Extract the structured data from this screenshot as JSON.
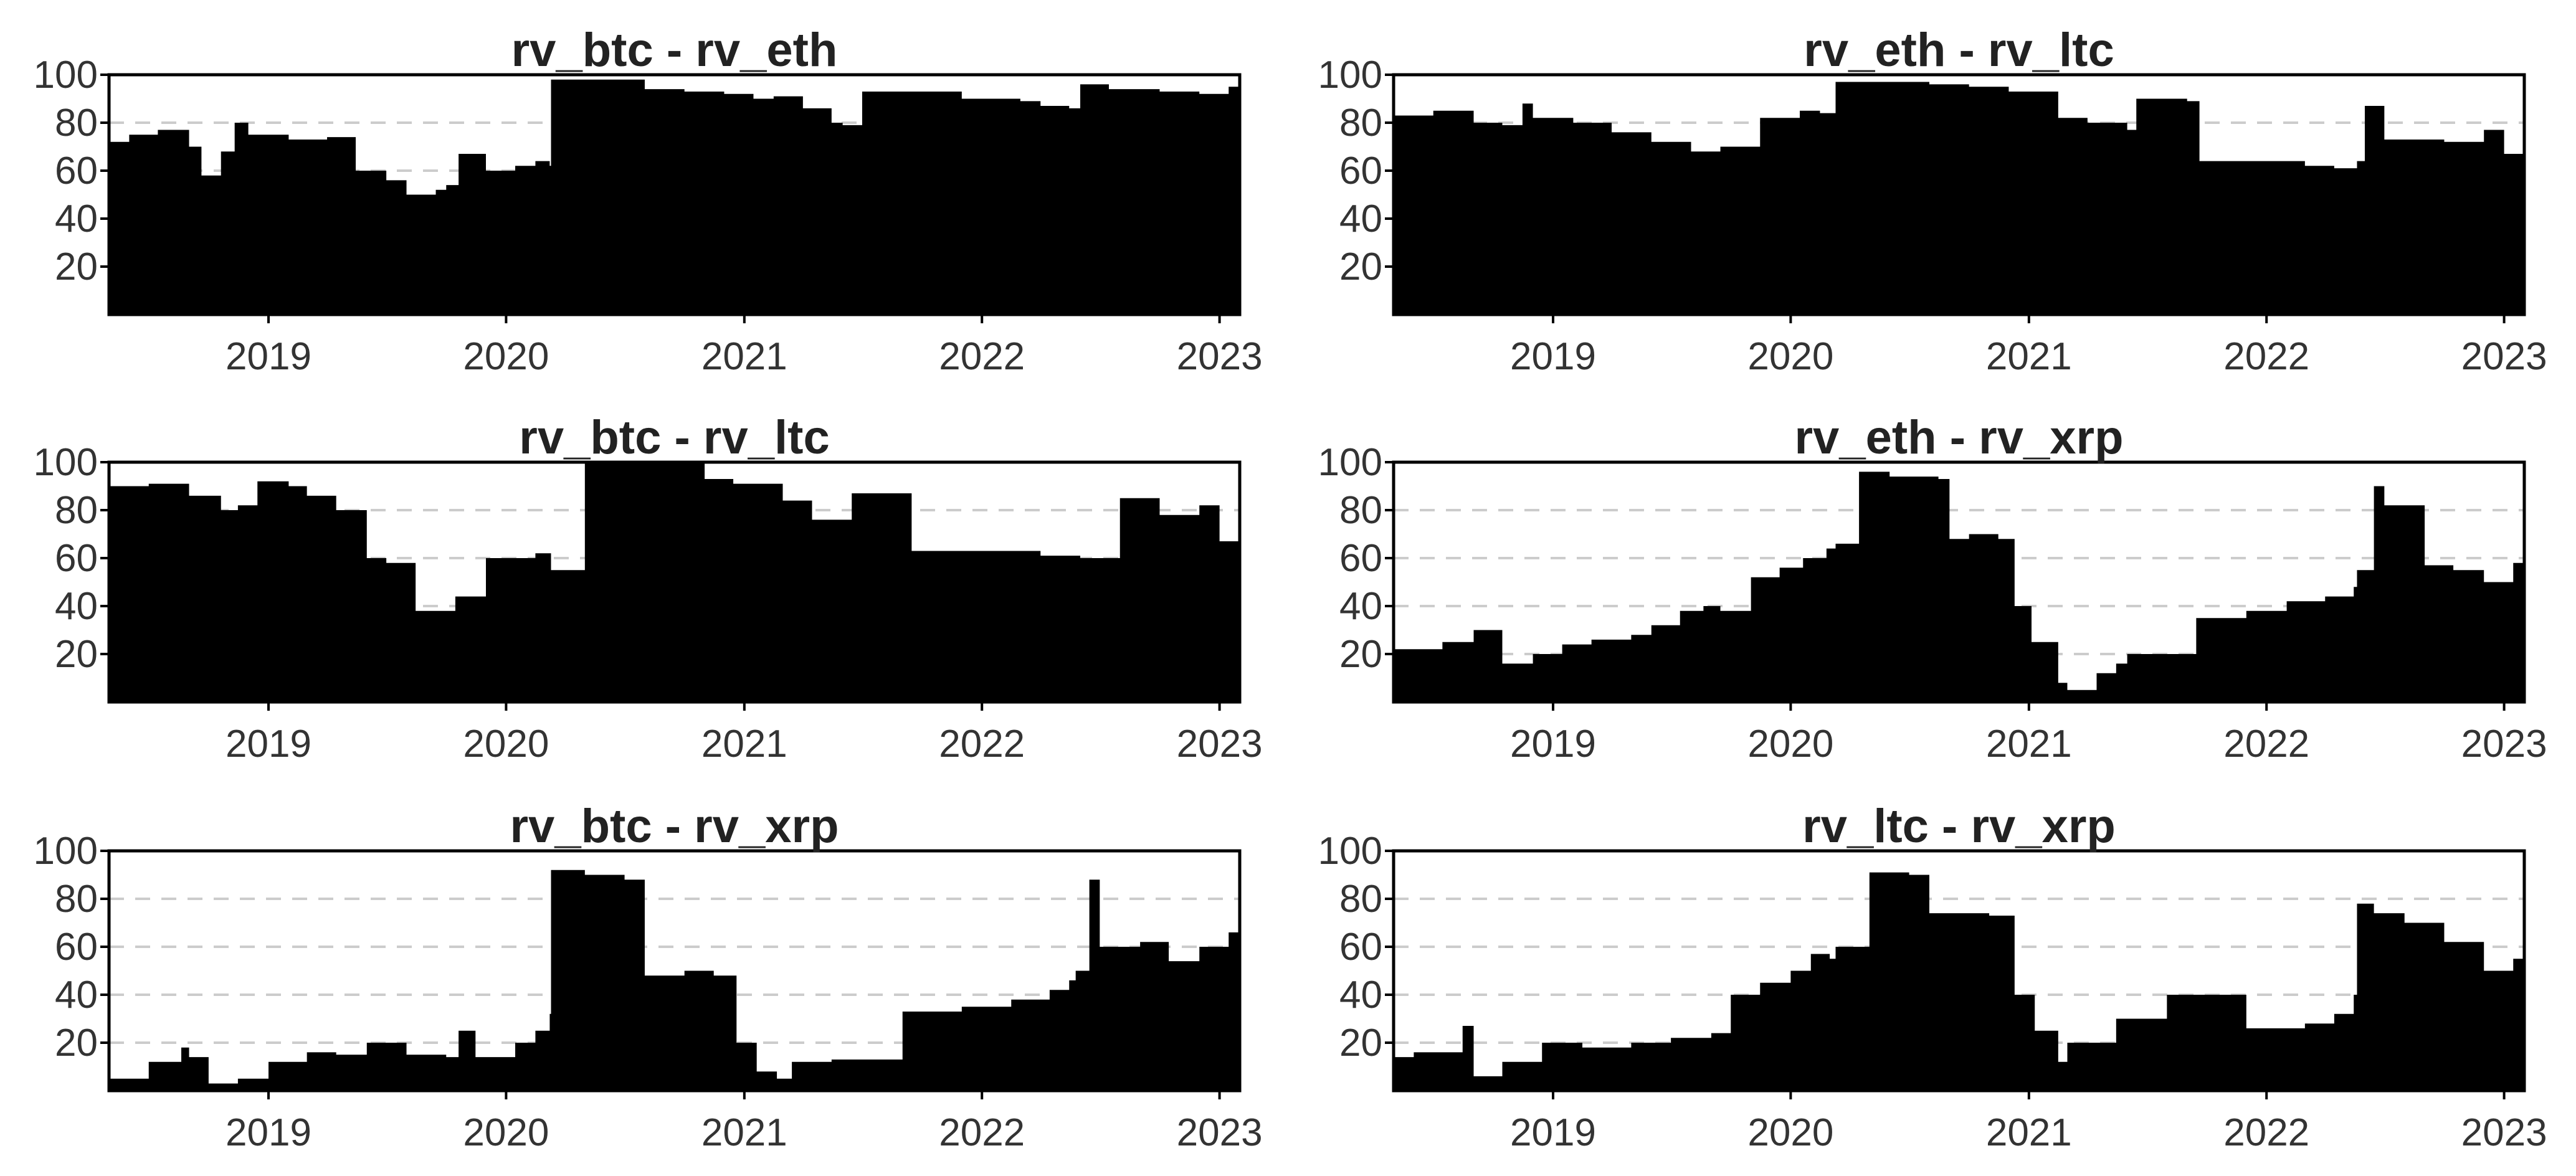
{
  "chart_data": [
    {
      "type": "area",
      "title": "rv_btc - rv_eth",
      "x_ticks": [
        "2019",
        "2020",
        "2021",
        "2022",
        "2023"
      ],
      "y_ticks": [
        20,
        40,
        60,
        80,
        100
      ],
      "xlim": [
        "2018-05-01",
        "2023-02-01"
      ],
      "ylim": [
        0,
        100
      ],
      "grid": "dashed horizontal",
      "x": [
        "2018-05-01",
        "2018-06-01",
        "2018-07-15",
        "2018-09-01",
        "2018-09-20",
        "2018-10-20",
        "2018-11-10",
        "2018-12-01",
        "2019-02-01",
        "2019-04-01",
        "2019-05-15",
        "2019-07-01",
        "2019-08-01",
        "2019-09-15",
        "2019-10-01",
        "2019-10-20",
        "2019-12-01",
        "2020-01-15",
        "2020-02-15",
        "2020-03-08",
        "2020-03-10",
        "2020-05-01",
        "2020-08-01",
        "2020-10-01",
        "2020-12-01",
        "2021-01-15",
        "2021-02-15",
        "2021-04-01",
        "2021-05-15",
        "2021-06-01",
        "2021-07-01",
        "2021-09-01",
        "2021-12-01",
        "2022-03-01",
        "2022-04-01",
        "2022-05-15",
        "2022-06-01",
        "2022-07-15",
        "2022-10-01",
        "2022-12-01",
        "2023-01-15",
        "2023-02-01"
      ],
      "y": [
        72,
        75,
        77,
        70,
        58,
        68,
        80,
        75,
        73,
        74,
        60,
        56,
        50,
        52,
        54,
        67,
        60,
        62,
        64,
        62,
        98,
        98,
        94,
        93,
        92,
        90,
        91,
        86,
        80,
        79,
        93,
        93,
        90,
        89,
        87,
        86,
        96,
        94,
        93,
        92,
        95,
        98
      ]
    },
    {
      "type": "area",
      "title": "rv_eth - rv_ltc",
      "x_ticks": [
        "2019",
        "2020",
        "2021",
        "2022",
        "2023"
      ],
      "y_ticks": [
        20,
        40,
        60,
        80,
        100
      ],
      "xlim": [
        "2018-05-01",
        "2023-02-01"
      ],
      "ylim": [
        0,
        100
      ],
      "grid": "dashed horizontal",
      "x": [
        "2018-05-01",
        "2018-07-01",
        "2018-09-01",
        "2018-10-15",
        "2018-11-15",
        "2018-12-01",
        "2019-02-01",
        "2019-04-01",
        "2019-06-01",
        "2019-08-01",
        "2019-09-15",
        "2019-11-15",
        "2020-01-15",
        "2020-02-15",
        "2020-03-10",
        "2020-05-01",
        "2020-08-01",
        "2020-10-01",
        "2020-12-01",
        "2021-02-15",
        "2021-04-01",
        "2021-06-01",
        "2021-06-15",
        "2021-09-01",
        "2021-09-20",
        "2021-12-01",
        "2022-03-01",
        "2022-04-15",
        "2022-05-20",
        "2022-06-01",
        "2022-07-01",
        "2022-10-01",
        "2022-12-01",
        "2023-01-01",
        "2023-02-01"
      ],
      "y": [
        83,
        85,
        80,
        79,
        88,
        82,
        80,
        76,
        72,
        68,
        70,
        82,
        85,
        84,
        97,
        97,
        96,
        95,
        93,
        82,
        80,
        77,
        90,
        89,
        64,
        64,
        62,
        61,
        64,
        87,
        73,
        72,
        77,
        67,
        70
      ]
    },
    {
      "type": "area",
      "title": "rv_btc - rv_ltc",
      "x_ticks": [
        "2019",
        "2020",
        "2021",
        "2022",
        "2023"
      ],
      "y_ticks": [
        20,
        40,
        60,
        80,
        100
      ],
      "xlim": [
        "2018-05-01",
        "2023-02-01"
      ],
      "ylim": [
        0,
        100
      ],
      "grid": "dashed horizontal",
      "x": [
        "2018-05-01",
        "2018-07-01",
        "2018-09-01",
        "2018-10-20",
        "2018-11-15",
        "2018-12-15",
        "2019-02-01",
        "2019-03-01",
        "2019-04-15",
        "2019-06-01",
        "2019-07-01",
        "2019-08-15",
        "2019-10-15",
        "2019-12-01",
        "2020-02-15",
        "2020-03-10",
        "2020-05-01",
        "2020-08-01",
        "2020-11-01",
        "2020-12-15",
        "2021-03-01",
        "2021-04-15",
        "2021-06-15",
        "2021-09-15",
        "2022-03-01",
        "2022-04-01",
        "2022-06-01",
        "2022-08-01",
        "2022-10-01",
        "2022-12-01",
        "2023-01-01",
        "2023-02-01"
      ],
      "y": [
        90,
        91,
        86,
        80,
        82,
        92,
        90,
        86,
        80,
        60,
        58,
        38,
        44,
        60,
        62,
        55,
        100,
        100,
        93,
        91,
        84,
        76,
        87,
        63,
        63,
        61,
        60,
        85,
        78,
        82,
        67,
        70
      ]
    },
    {
      "type": "area",
      "title": "rv_eth - rv_xrp",
      "x_ticks": [
        "2019",
        "2020",
        "2021",
        "2022",
        "2023"
      ],
      "y_ticks": [
        20,
        40,
        60,
        80,
        100
      ],
      "xlim": [
        "2018-05-01",
        "2023-02-01"
      ],
      "ylim": [
        0,
        100
      ],
      "grid": "dashed horizontal",
      "x": [
        "2018-05-01",
        "2018-07-15",
        "2018-09-01",
        "2018-10-15",
        "2018-12-01",
        "2019-01-15",
        "2019-03-01",
        "2019-05-01",
        "2019-06-01",
        "2019-07-15",
        "2019-08-20",
        "2019-09-15",
        "2019-11-01",
        "2019-12-15",
        "2020-01-20",
        "2020-02-25",
        "2020-03-10",
        "2020-04-15",
        "2020-06-01",
        "2020-08-15",
        "2020-09-01",
        "2020-10-01",
        "2020-11-15",
        "2020-12-10",
        "2021-01-05",
        "2021-02-15",
        "2021-03-01",
        "2021-04-15",
        "2021-05-15",
        "2021-06-01",
        "2021-09-15",
        "2021-12-01",
        "2022-02-01",
        "2022-04-01",
        "2022-05-15",
        "2022-05-20",
        "2022-06-15",
        "2022-07-01",
        "2022-09-01",
        "2022-10-15",
        "2022-12-01",
        "2023-01-15",
        "2023-02-01"
      ],
      "y": [
        22,
        25,
        30,
        16,
        20,
        24,
        26,
        28,
        32,
        38,
        40,
        38,
        52,
        56,
        60,
        64,
        66,
        96,
        94,
        93,
        68,
        70,
        68,
        40,
        25,
        8,
        5,
        12,
        16,
        20,
        35,
        38,
        42,
        44,
        48,
        55,
        90,
        82,
        57,
        55,
        50,
        58,
        65
      ]
    },
    {
      "type": "area",
      "title": "rv_btc - rv_xrp",
      "x_ticks": [
        "2019",
        "2020",
        "2021",
        "2022",
        "2023"
      ],
      "y_ticks": [
        20,
        40,
        60,
        80,
        100
      ],
      "xlim": [
        "2018-05-01",
        "2023-02-01"
      ],
      "ylim": [
        0,
        100
      ],
      "grid": "dashed horizontal",
      "x": [
        "2018-05-01",
        "2018-07-01",
        "2018-08-20",
        "2018-09-01",
        "2018-10-01",
        "2018-11-15",
        "2019-01-01",
        "2019-03-01",
        "2019-04-15",
        "2019-06-01",
        "2019-08-01",
        "2019-10-01",
        "2019-10-20",
        "2019-11-15",
        "2020-01-15",
        "2020-02-15",
        "2020-03-08",
        "2020-03-10",
        "2020-05-01",
        "2020-07-01",
        "2020-08-01",
        "2020-10-01",
        "2020-11-15",
        "2020-12-20",
        "2021-01-20",
        "2021-02-20",
        "2021-03-15",
        "2021-05-15",
        "2021-09-01",
        "2021-12-01",
        "2022-02-15",
        "2022-04-15",
        "2022-05-15",
        "2022-05-25",
        "2022-06-15",
        "2022-07-01",
        "2022-09-01",
        "2022-10-15",
        "2022-12-01",
        "2023-01-15",
        "2023-02-01"
      ],
      "y": [
        5,
        12,
        18,
        14,
        3,
        5,
        12,
        16,
        15,
        20,
        15,
        14,
        25,
        14,
        20,
        25,
        32,
        92,
        90,
        88,
        48,
        50,
        48,
        20,
        8,
        5,
        12,
        13,
        33,
        35,
        38,
        42,
        46,
        50,
        88,
        60,
        62,
        54,
        60,
        66,
        70
      ]
    },
    {
      "type": "area",
      "title": "rv_ltc - rv_xrp",
      "x_ticks": [
        "2019",
        "2020",
        "2021",
        "2022",
        "2023"
      ],
      "y_ticks": [
        20,
        40,
        60,
        80,
        100
      ],
      "xlim": [
        "2018-05-01",
        "2023-02-01"
      ],
      "ylim": [
        0,
        100
      ],
      "grid": "dashed horizontal",
      "x": [
        "2018-05-01",
        "2018-06-01",
        "2018-08-15",
        "2018-09-01",
        "2018-10-15",
        "2018-12-15",
        "2019-02-15",
        "2019-05-01",
        "2019-07-01",
        "2019-09-01",
        "2019-10-01",
        "2019-11-15",
        "2020-01-01",
        "2020-02-01",
        "2020-03-01",
        "2020-03-10",
        "2020-05-01",
        "2020-07-01",
        "2020-08-01",
        "2020-11-01",
        "2020-12-10",
        "2021-01-10",
        "2021-02-15",
        "2021-03-01",
        "2021-05-15",
        "2021-08-01",
        "2021-09-20",
        "2021-12-01",
        "2022-03-01",
        "2022-04-15",
        "2022-05-15",
        "2022-05-20",
        "2022-06-15",
        "2022-08-01",
        "2022-10-01",
        "2022-12-01",
        "2023-01-15",
        "2023-02-01"
      ],
      "y": [
        14,
        16,
        27,
        6,
        12,
        20,
        18,
        20,
        22,
        24,
        40,
        45,
        50,
        57,
        55,
        60,
        91,
        90,
        74,
        73,
        40,
        25,
        12,
        20,
        30,
        40,
        40,
        26,
        28,
        32,
        40,
        78,
        74,
        70,
        62,
        50,
        55,
        60
      ]
    }
  ]
}
